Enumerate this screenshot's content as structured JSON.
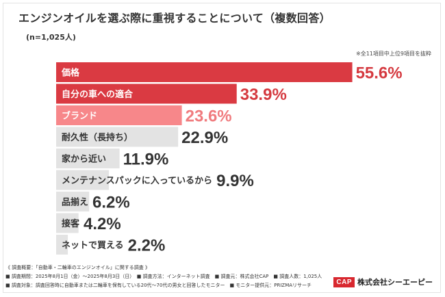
{
  "header": {
    "title": "エンジンオイルを選ぶ際に重視することについて（複数回答）",
    "subtitle": "(n=1,025人)",
    "note": "※全11項目中上位9項目を抜粋"
  },
  "chart_data": {
    "type": "bar",
    "orientation": "horizontal",
    "categories": [
      "価格",
      "自分の車への適合",
      "ブランド",
      "耐久性（長持ち）",
      "家から近い",
      "メンテナンスパックに入っているから",
      "品揃え",
      "接客",
      "ネットで買える"
    ],
    "value_labels": [
      "55.6%",
      "33.9%",
      "23.6%",
      "22.9%",
      "11.9%",
      "9.9%",
      "6.2%",
      "4.2%",
      "2.2%"
    ],
    "values": [
      55.6,
      33.9,
      23.6,
      22.9,
      11.9,
      9.9,
      6.2,
      4.2,
      2.2
    ],
    "xlim": [
      0,
      100
    ],
    "colors": {
      "default": "#e3e3e3",
      "highlight_1": "#da3a42",
      "highlight_2": "#f7878a",
      "value_default": "#333333",
      "value_highlight_1": "#d53a40",
      "value_highlight_2": "#f07b7e"
    },
    "highlights": [
      "highlight_1",
      "highlight_1",
      "highlight_2"
    ]
  },
  "footer": {
    "line1": "《 調査概要：「自動車・二輪車のエンジンオイル」に関する調査 》",
    "line2": "■ 調査期間：2025年8月1日（金）〜2025年8月3日（日）　■ 調査方法：インターネット調査　■ 調査元：株式会社CAP　■ 調査人数：1,025人",
    "line3": "■ 調査対象：調査回答時に自動車または二輪車を保有している20代〜70代の男女と回答したモニター　■ モニター提供元：PRIZMAリサーチ"
  },
  "logo": {
    "mark": "CAP",
    "company": "株式会社シーエーピー"
  }
}
